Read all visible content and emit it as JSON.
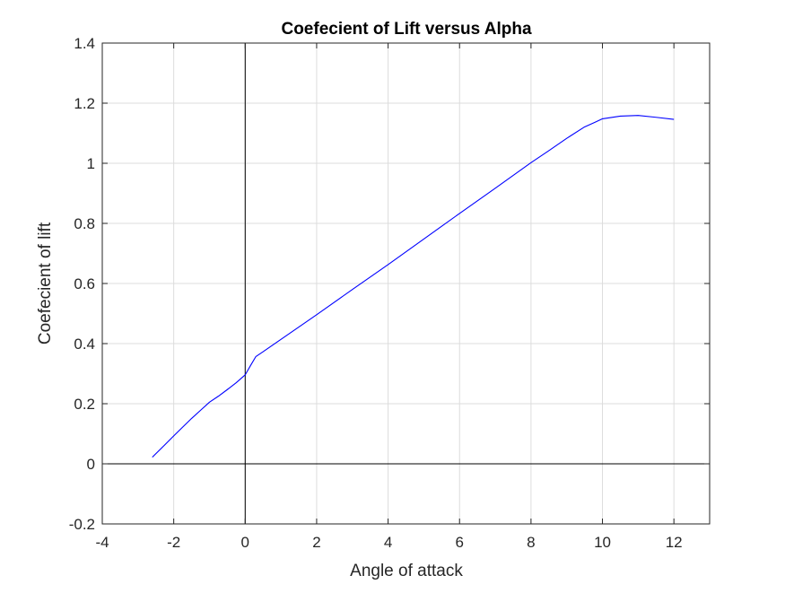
{
  "chart_data": {
    "type": "line",
    "title": "Coefecient of Lift versus Alpha",
    "xlabel": "Angle of attack",
    "ylabel": "Coefecient of lift",
    "xlim": [
      -4,
      13
    ],
    "ylim": [
      -0.2,
      1.4
    ],
    "xticks": [
      -4,
      -2,
      0,
      2,
      4,
      6,
      8,
      10,
      12
    ],
    "xtick_labels": [
      "-4",
      "-2",
      "0",
      "2",
      "4",
      "6",
      "8",
      "10",
      "12"
    ],
    "yticks": [
      -0.2,
      0,
      0.2,
      0.4,
      0.6,
      0.8,
      1,
      1.2,
      1.4
    ],
    "ytick_labels": [
      "-0.2",
      "0",
      "0.2",
      "0.4",
      "0.6",
      "0.8",
      "1",
      "1.2",
      "1.4"
    ],
    "grid": true,
    "reference_lines": {
      "x": 0,
      "y": 0
    },
    "series": [
      {
        "color": "#0000ff",
        "x": [
          -2.6,
          -2.25,
          -2.0,
          -1.75,
          -1.5,
          -1.25,
          -1.0,
          -0.75,
          -0.5,
          -0.25,
          0.0,
          0.15,
          0.3,
          0.5,
          1.0,
          2.0,
          3.0,
          4.0,
          5.0,
          6.0,
          7.0,
          8.0,
          8.5,
          9.0,
          9.5,
          9.8,
          10.0,
          10.5,
          11.0,
          11.5,
          12.0
        ],
        "y": [
          0.022,
          0.063,
          0.093,
          0.122,
          0.151,
          0.178,
          0.205,
          0.225,
          0.247,
          0.27,
          0.296,
          0.327,
          0.357,
          0.373,
          0.414,
          0.496,
          0.58,
          0.663,
          0.748,
          0.833,
          0.917,
          1.002,
          1.042,
          1.083,
          1.121,
          1.137,
          1.148,
          1.157,
          1.159,
          1.153,
          1.146
        ]
      }
    ],
    "y_display_offset_note": "",
    "colors": {
      "line": "#0000ff",
      "grid": "#dcdcdc",
      "axes": "#262626",
      "reference": "#000000"
    }
  }
}
